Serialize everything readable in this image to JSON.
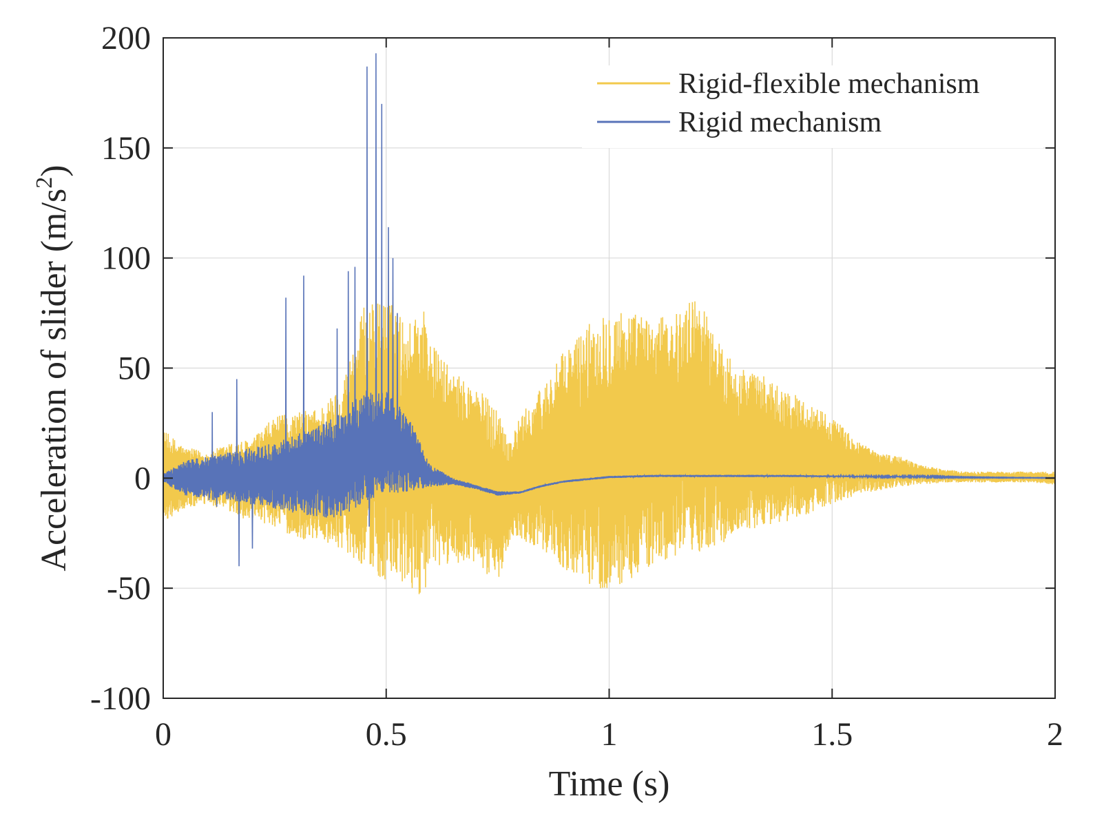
{
  "chart_data": {
    "type": "line",
    "xlabel": "Time (s)",
    "ylabel": "Acceleration of slider (m/s",
    "ylabel_superscript": "2",
    "ylabel_suffix": ")",
    "xlim": [
      0,
      2
    ],
    "ylim": [
      -100,
      200
    ],
    "xticks": [
      0,
      0.5,
      1,
      1.5,
      2
    ],
    "xtick_labels": [
      "0",
      "0.5",
      "1",
      "1.5",
      "2"
    ],
    "yticks": [
      -100,
      -50,
      0,
      50,
      100,
      150,
      200
    ],
    "ytick_labels": [
      "-100",
      "-50",
      "0",
      "50",
      "100",
      "150",
      "200"
    ],
    "grid": true,
    "legend_position": "top-right",
    "series": [
      {
        "name": "Rigid-flexible mechanism",
        "color": "#f2c94c",
        "envelope": {
          "time": [
            0,
            0.05,
            0.1,
            0.15,
            0.2,
            0.25,
            0.3,
            0.35,
            0.4,
            0.45,
            0.5,
            0.55,
            0.58,
            0.6,
            0.65,
            0.7,
            0.75,
            0.78,
            0.8,
            0.85,
            0.9,
            0.95,
            1.0,
            1.05,
            1.1,
            1.15,
            1.2,
            1.25,
            1.3,
            1.35,
            1.4,
            1.45,
            1.5,
            1.55,
            1.6,
            1.65,
            1.7,
            1.75,
            1.8,
            1.85,
            1.9,
            1.95,
            2.0
          ],
          "upper": [
            22,
            14,
            12,
            16,
            18,
            28,
            30,
            32,
            42,
            78,
            82,
            70,
            82,
            62,
            48,
            42,
            32,
            18,
            28,
            42,
            58,
            70,
            78,
            76,
            72,
            75,
            84,
            60,
            50,
            46,
            40,
            34,
            28,
            18,
            12,
            10,
            6,
            4,
            3,
            3,
            3,
            3,
            3
          ],
          "lower": [
            -20,
            -14,
            -12,
            -16,
            -20,
            -22,
            -28,
            -28,
            -32,
            -40,
            -48,
            -50,
            -54,
            -44,
            -38,
            -40,
            -48,
            -26,
            -28,
            -32,
            -42,
            -48,
            -52,
            -46,
            -40,
            -36,
            -34,
            -30,
            -24,
            -22,
            -20,
            -16,
            -12,
            -8,
            -6,
            -4,
            -3,
            -2,
            -2,
            -2,
            -2,
            -2,
            -3
          ]
        }
      },
      {
        "name": "Rigid mechanism",
        "color": "#5873b8",
        "envelope": {
          "time": [
            0,
            0.05,
            0.1,
            0.15,
            0.2,
            0.25,
            0.3,
            0.35,
            0.4,
            0.45,
            0.5,
            0.55,
            0.6,
            0.65,
            0.7,
            0.75,
            0.8,
            0.85,
            0.9,
            0.95,
            1.0,
            1.1,
            1.2,
            1.3,
            1.4,
            1.5,
            1.6,
            1.7,
            1.8,
            1.9,
            2.0
          ],
          "upper": [
            2,
            8,
            10,
            12,
            14,
            16,
            20,
            24,
            30,
            40,
            40,
            28,
            6,
            0,
            -3,
            -6,
            -6,
            -3,
            -1,
            0,
            1,
            1.5,
            1.5,
            1.5,
            1.5,
            1.2,
            1.0,
            1.0,
            0.5,
            0.3,
            0.2
          ],
          "lower": [
            -2,
            -8,
            -10,
            -10,
            -12,
            -14,
            -16,
            -18,
            -18,
            -12,
            -8,
            -6,
            -4,
            -3,
            -5,
            -8,
            -7,
            -4,
            -2,
            -1,
            0,
            0.5,
            0.5,
            0.5,
            0.5,
            0.5,
            0.4,
            0.4,
            0.2,
            0.1,
            0.0
          ]
        },
        "spikes": [
          {
            "t": 0.11,
            "v": 30
          },
          {
            "t": 0.12,
            "v": -13
          },
          {
            "t": 0.165,
            "v": 45
          },
          {
            "t": 0.17,
            "v": -40
          },
          {
            "t": 0.2,
            "v": -32
          },
          {
            "t": 0.275,
            "v": 82
          },
          {
            "t": 0.315,
            "v": 92
          },
          {
            "t": 0.39,
            "v": 68
          },
          {
            "t": 0.415,
            "v": 94
          },
          {
            "t": 0.43,
            "v": 96
          },
          {
            "t": 0.457,
            "v": 187
          },
          {
            "t": 0.462,
            "v": -22
          },
          {
            "t": 0.477,
            "v": 193
          },
          {
            "t": 0.49,
            "v": 170
          },
          {
            "t": 0.505,
            "v": 114
          },
          {
            "t": 0.515,
            "v": 100
          },
          {
            "t": 0.525,
            "v": 75
          }
        ]
      }
    ]
  }
}
